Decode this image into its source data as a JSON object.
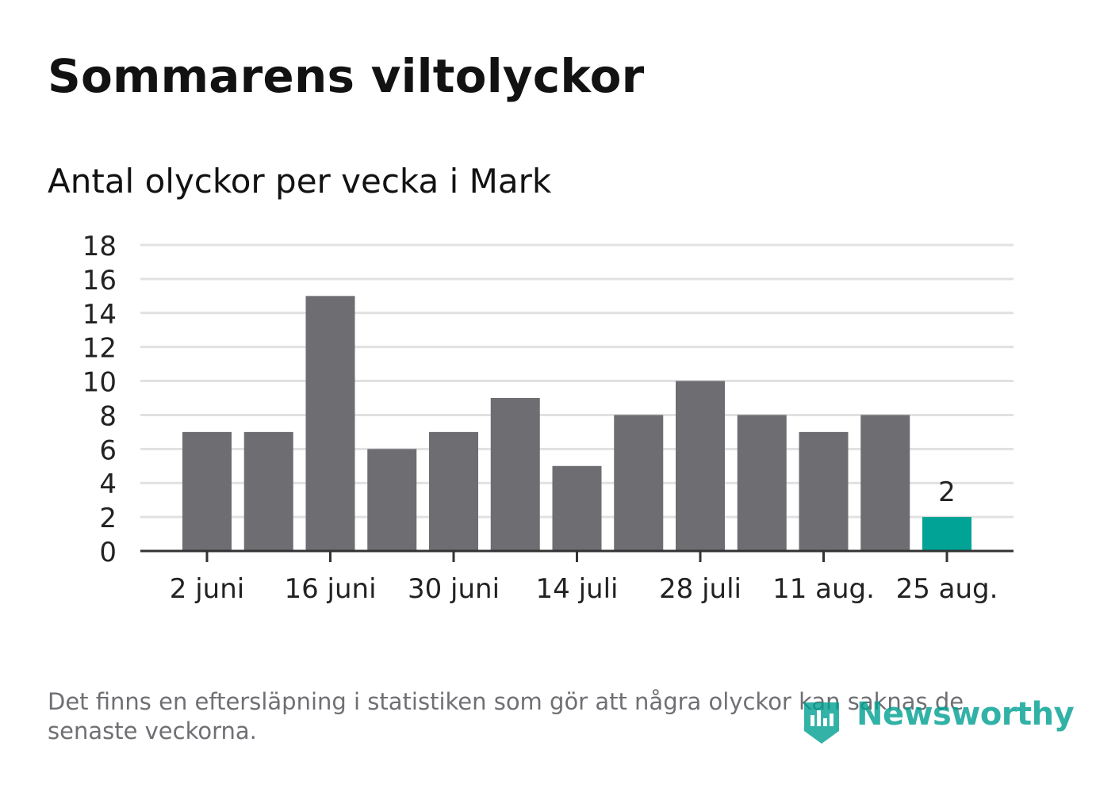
{
  "title": "Sommarens viltolyckor",
  "subtitle": "Antal olyckor per vecka i Mark",
  "footnote": "Det finns en eftersläpning i statistiken som gör att några olyckor kan saknas de senaste veckorna.",
  "logo": {
    "text": "Newsworthy",
    "icon": "newsworthy-bar-chart-icon"
  },
  "colors": {
    "bar": "#6e6d72",
    "highlight": "#00a396",
    "grid": "#e1e1e1",
    "axis": "#333333",
    "text": "#222222"
  },
  "chart_data": {
    "type": "bar",
    "title": "Antal olyckor per vecka i Mark",
    "xlabel": "",
    "ylabel": "",
    "ylim": [
      0,
      18
    ],
    "yticks": [
      0,
      2,
      4,
      6,
      8,
      10,
      12,
      14,
      16,
      18
    ],
    "xtick_labels": [
      "2 juni",
      "16 juni",
      "30 juni",
      "14 juli",
      "28 juli",
      "11 aug.",
      "25 aug."
    ],
    "xtick_positions": [
      0,
      2,
      4,
      6,
      8,
      10,
      12
    ],
    "values": [
      7,
      7,
      15,
      6,
      7,
      9,
      5,
      8,
      10,
      8,
      7,
      8,
      2
    ],
    "highlight_index": 12,
    "data_labels": [
      {
        "index": 12,
        "text": "2"
      }
    ],
    "grid": true,
    "legend": "none"
  }
}
